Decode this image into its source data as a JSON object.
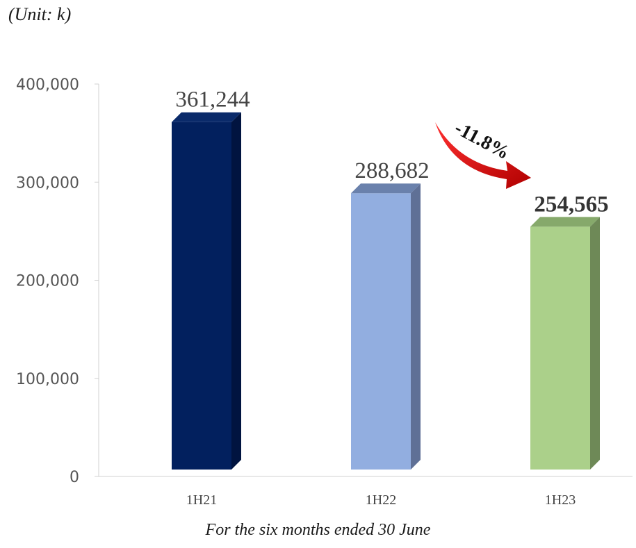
{
  "unit_label": "(Unit: k)",
  "caption": "For the six months ended 30 June",
  "change_label": "-11.8%",
  "chart_data": {
    "type": "bar",
    "categories": [
      "1H21",
      "1H22",
      "1H23"
    ],
    "values": [
      361244,
      288682,
      254565
    ],
    "value_labels": [
      "361,244",
      "288,682",
      "254,565"
    ],
    "ylim": [
      0,
      400000
    ],
    "y_ticks": [
      {
        "value": 0,
        "label": "0"
      },
      {
        "value": 100000,
        "label": "100,000"
      },
      {
        "value": 200000,
        "label": "200,000"
      },
      {
        "value": 300000,
        "label": "300,000"
      },
      {
        "value": 400000,
        "label": "400,000"
      }
    ],
    "bar_colors": [
      {
        "front": "#02205e",
        "side": "#011440",
        "top": "#0a2a6a"
      },
      {
        "front": "#92aee0",
        "side": "#5f7096",
        "top": "#6a81ac"
      },
      {
        "front": "#abd08a",
        "side": "#6e8957",
        "top": "#86a96b"
      }
    ],
    "grid": false,
    "legend": "none"
  }
}
